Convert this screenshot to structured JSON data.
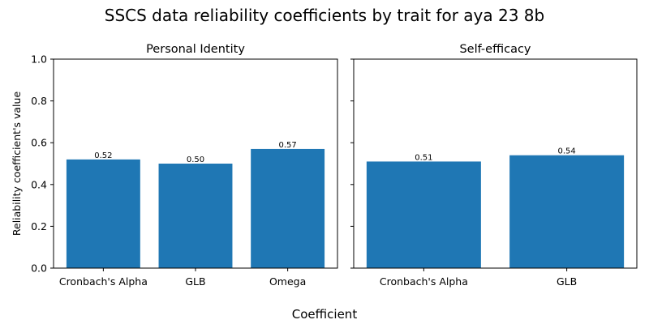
{
  "figure": {
    "title": "SSCS data reliability coefficients by trait for aya 23 8b",
    "xlabel": "Coefficient",
    "ylabel": "Reliability coefficient's value"
  },
  "chart_data": [
    {
      "type": "bar",
      "title": "Personal Identity",
      "categories": [
        "Cronbach's Alpha",
        "GLB",
        "Omega"
      ],
      "values": [
        0.52,
        0.5,
        0.57
      ],
      "value_labels": [
        "0.52",
        "0.50",
        "0.57"
      ],
      "ylim": [
        0,
        1
      ],
      "yticks": [
        "0.0",
        "0.2",
        "0.4",
        "0.6",
        "0.8",
        "1.0"
      ],
      "color": "#1f77b4",
      "grid": false
    },
    {
      "type": "bar",
      "title": "Self-efficacy",
      "categories": [
        "Cronbach's Alpha",
        "GLB"
      ],
      "values": [
        0.51,
        0.54
      ],
      "value_labels": [
        "0.51",
        "0.54"
      ],
      "ylim": [
        0,
        1
      ],
      "color": "#1f77b4",
      "grid": false
    }
  ]
}
